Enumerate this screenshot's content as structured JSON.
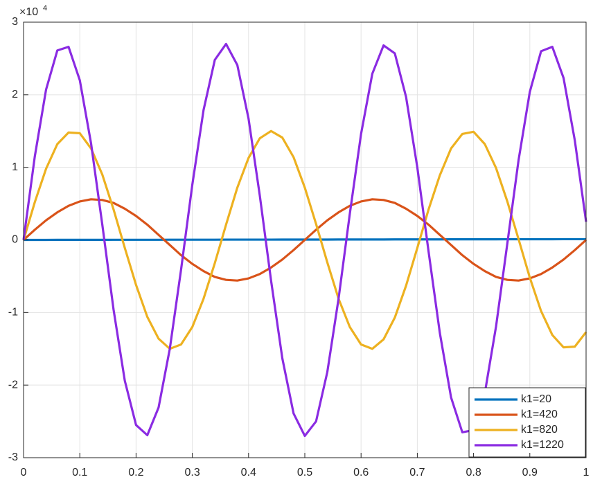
{
  "chart_data": {
    "type": "line",
    "multiplier": {
      "base": "×10",
      "exponent": "4"
    },
    "x": [
      0,
      0.02,
      0.04,
      0.06,
      0.08,
      0.1,
      0.12,
      0.14,
      0.16,
      0.18,
      0.2,
      0.22,
      0.24,
      0.26,
      0.28,
      0.3,
      0.32,
      0.34,
      0.36,
      0.38,
      0.4,
      0.42,
      0.44,
      0.46,
      0.48,
      0.5,
      0.52,
      0.54,
      0.56,
      0.58,
      0.6,
      0.62,
      0.64,
      0.66,
      0.68,
      0.7,
      0.72,
      0.74,
      0.76,
      0.78,
      0.8,
      0.82,
      0.84,
      0.86,
      0.88,
      0.9,
      0.92,
      0.94,
      0.96,
      0.98,
      1
    ],
    "series": [
      {
        "name": "k1=20",
        "color": "#0072bd",
        "values": [
          0,
          0,
          0,
          0.001,
          0.001,
          0.001,
          0.001,
          0.001,
          0.002,
          0.002,
          0.002,
          0.002,
          0.002,
          0.003,
          0.003,
          0.003,
          0.003,
          0.003,
          0.004,
          0.004,
          0.004,
          0.004,
          0.004,
          0.005,
          0.005,
          0.005,
          0.005,
          0.005,
          0.006,
          0.006,
          0.006,
          0.006,
          0.006,
          0.007,
          0.007,
          0.007,
          0.007,
          0.007,
          0.008,
          0.008,
          0.008,
          0.008,
          0.008,
          0.009,
          0.009,
          0.009,
          0.009,
          0.009,
          0.01,
          0.01,
          0.01
        ]
      },
      {
        "name": "k1=420",
        "color": "#d95319",
        "values": [
          0,
          0.14,
          0.27,
          0.38,
          0.47,
          0.53,
          0.56,
          0.55,
          0.51,
          0.43,
          0.33,
          0.21,
          0.07,
          -0.07,
          -0.21,
          -0.33,
          -0.43,
          -0.51,
          -0.55,
          -0.56,
          -0.53,
          -0.47,
          -0.38,
          -0.27,
          -0.14,
          0,
          0.14,
          0.27,
          0.38,
          0.47,
          0.53,
          0.56,
          0.55,
          0.51,
          0.43,
          0.33,
          0.21,
          0.07,
          -0.07,
          -0.21,
          -0.33,
          -0.43,
          -0.51,
          -0.55,
          -0.56,
          -0.53,
          -0.47,
          -0.38,
          -0.27,
          -0.14,
          0
        ]
      },
      {
        "name": "k1=820",
        "color": "#edb120",
        "values": [
          0,
          0.52,
          0.98,
          1.32,
          1.48,
          1.47,
          1.26,
          0.9,
          0.42,
          -0.11,
          -0.62,
          -1.06,
          -1.36,
          -1.5,
          -1.44,
          -1.2,
          -0.81,
          -0.32,
          0.21,
          0.72,
          1.13,
          1.4,
          1.5,
          1.41,
          1.14,
          0.72,
          0.22,
          -0.31,
          -0.81,
          -1.2,
          -1.44,
          -1.5,
          -1.37,
          -1.07,
          -0.63,
          -0.11,
          0.42,
          0.89,
          1.26,
          1.46,
          1.49,
          1.32,
          0.99,
          0.53,
          0.01,
          -0.52,
          -0.98,
          -1.31,
          -1.48,
          -1.47,
          -1.27
        ]
      },
      {
        "name": "k1=1220",
        "color": "#8a2be2",
        "values": [
          0,
          1.15,
          2.07,
          2.61,
          2.66,
          2.2,
          1.33,
          0.21,
          -0.96,
          -1.94,
          -2.55,
          -2.69,
          -2.31,
          -1.5,
          -0.41,
          0.76,
          1.79,
          2.48,
          2.7,
          2.41,
          1.67,
          0.61,
          -0.56,
          -1.63,
          -2.39,
          -2.7,
          -2.5,
          -1.82,
          -0.81,
          0.36,
          1.46,
          2.29,
          2.68,
          2.57,
          1.97,
          1,
          -0.16,
          -1.28,
          -2.17,
          -2.65,
          -2.62,
          -2.11,
          -1.19,
          -0.05,
          1.1,
          2.04,
          2.6,
          2.66,
          2.23,
          1.37,
          0.25
        ]
      }
    ],
    "xlim": [
      0,
      1
    ],
    "ylim": [
      -3,
      3
    ],
    "xticks": [
      0,
      0.1,
      0.2,
      0.3,
      0.4,
      0.5,
      0.6,
      0.7,
      0.8,
      0.9,
      1
    ],
    "yticks": [
      -3,
      -2,
      -1,
      0,
      1,
      2,
      3
    ],
    "grid": true,
    "legend": "southeast"
  }
}
